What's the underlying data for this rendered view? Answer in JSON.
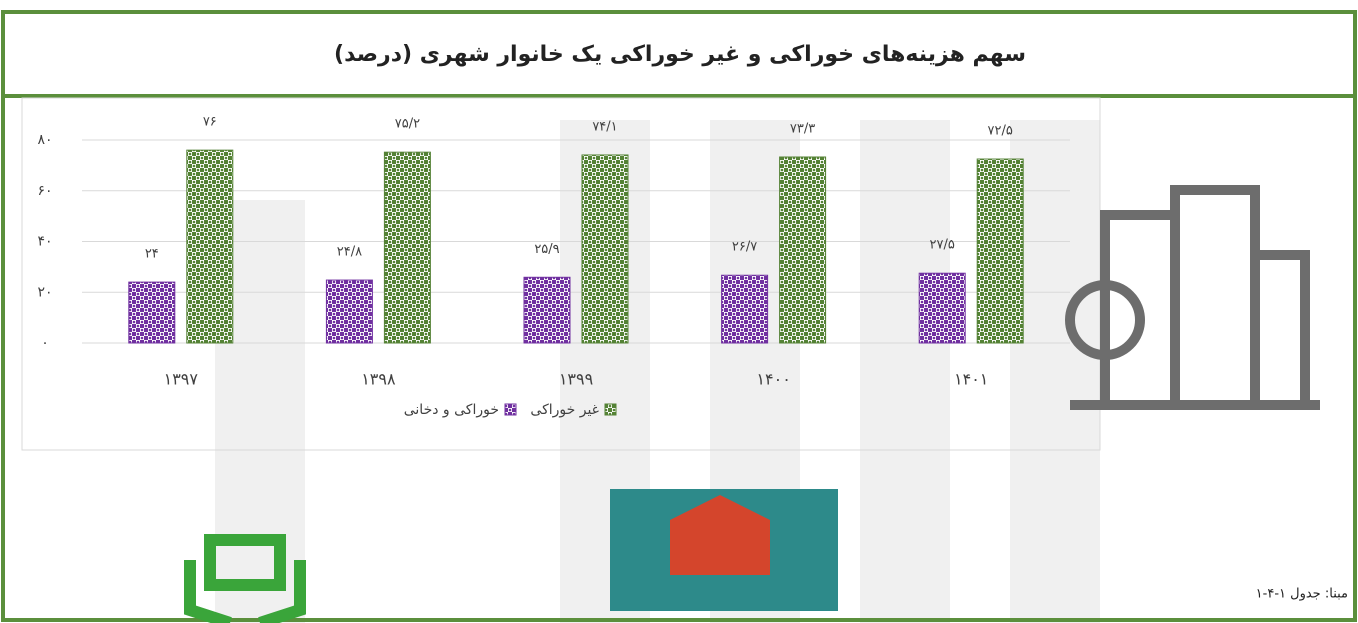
{
  "chart_data": {
    "type": "bar",
    "title": "سهم هزینه‌های خوراکی و غیر خوراکی یک خانوار شهری (درصد)",
    "categories": [
      "۱۳۹۷",
      "۱۳۹۸",
      "۱۳۹۹",
      "۱۴۰۰",
      "۱۴۰۱"
    ],
    "series": [
      {
        "name": "خوراکی و دخانی",
        "color": "#7030a0",
        "values": [
          24,
          24.8,
          25.9,
          26.7,
          27.5
        ],
        "value_labels": [
          "۲۴",
          "۲۴/۸",
          "۲۵/۹",
          "۲۶/۷",
          "۲۷/۵"
        ]
      },
      {
        "name": "غیر خوراکی",
        "color": "#548235",
        "values": [
          76,
          75.2,
          74.1,
          73.3,
          72.5
        ],
        "value_labels": [
          "۷۶",
          "۷۵/۲",
          "۷۴/۱",
          "۷۳/۳",
          "۷۲/۵"
        ]
      }
    ],
    "ylim": [
      0,
      80
    ],
    "yticks": [
      {
        "value": 0,
        "label": "۰"
      },
      {
        "value": 20,
        "label": "۲۰"
      },
      {
        "value": 40,
        "label": "۴۰"
      },
      {
        "value": 60,
        "label": "۶۰"
      },
      {
        "value": 80,
        "label": "۸۰"
      }
    ],
    "grid": true
  },
  "footer": {
    "source": "مبنا: جدول ۱-۴-۱"
  }
}
